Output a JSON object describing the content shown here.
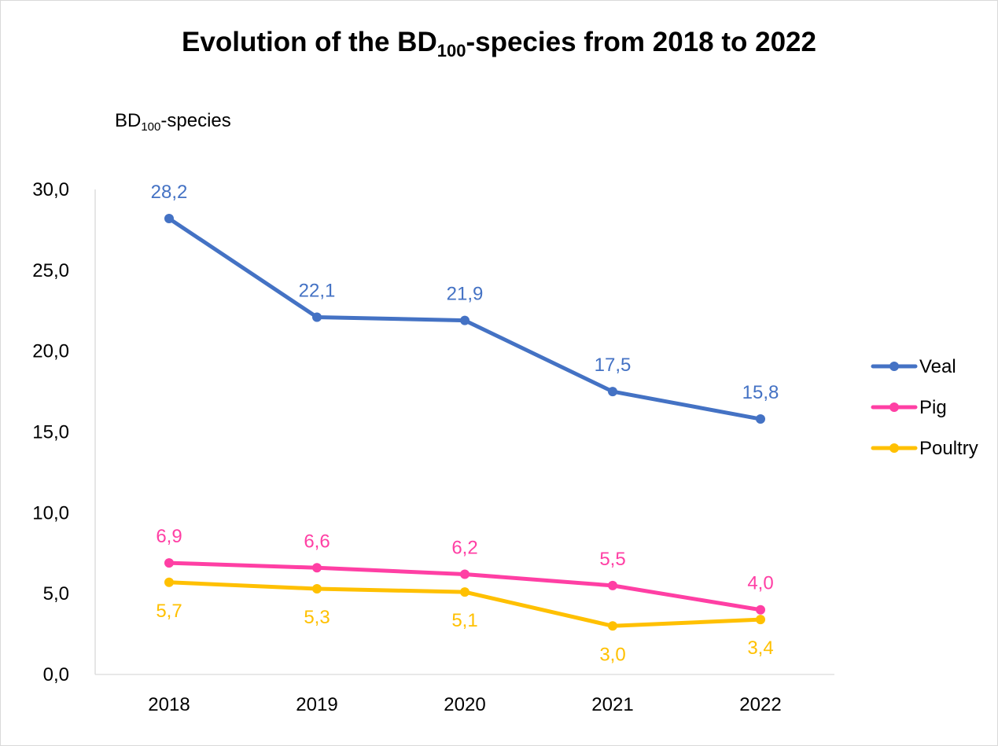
{
  "chart_data": {
    "type": "line",
    "title_main": "Evolution of the BD",
    "title_sub": "100",
    "title_rest": "-species from 2018 to 2022",
    "ylabel_main": "BD",
    "ylabel_sub": "100",
    "ylabel_rest": "-species",
    "categories": [
      "2018",
      "2019",
      "2020",
      "2021",
      "2022"
    ],
    "ylim": [
      0,
      30
    ],
    "yticks": [
      "0,0",
      "5,0",
      "10,0",
      "15,0",
      "20,0",
      "25,0",
      "30,0"
    ],
    "grid": false,
    "legend_position": "right",
    "series": [
      {
        "name": "Veal",
        "color": "#4472c4",
        "values": [
          28.2,
          22.1,
          21.9,
          17.5,
          15.8
        ],
        "labels": [
          "28,2",
          "22,1",
          "21,9",
          "17,5",
          "15,8"
        ],
        "label_position": "above"
      },
      {
        "name": "Pig",
        "color": "#ff3fa4",
        "values": [
          6.9,
          6.6,
          6.2,
          5.5,
          4.0
        ],
        "labels": [
          "6,9",
          "6,6",
          "6,2",
          "5,5",
          "4,0"
        ],
        "label_position": "above"
      },
      {
        "name": "Poultry",
        "color": "#ffc000",
        "values": [
          5.7,
          5.3,
          5.1,
          3.0,
          3.4
        ],
        "labels": [
          "5,7",
          "5,3",
          "5,1",
          "3,0",
          "3,4"
        ],
        "label_position": "below"
      }
    ]
  }
}
